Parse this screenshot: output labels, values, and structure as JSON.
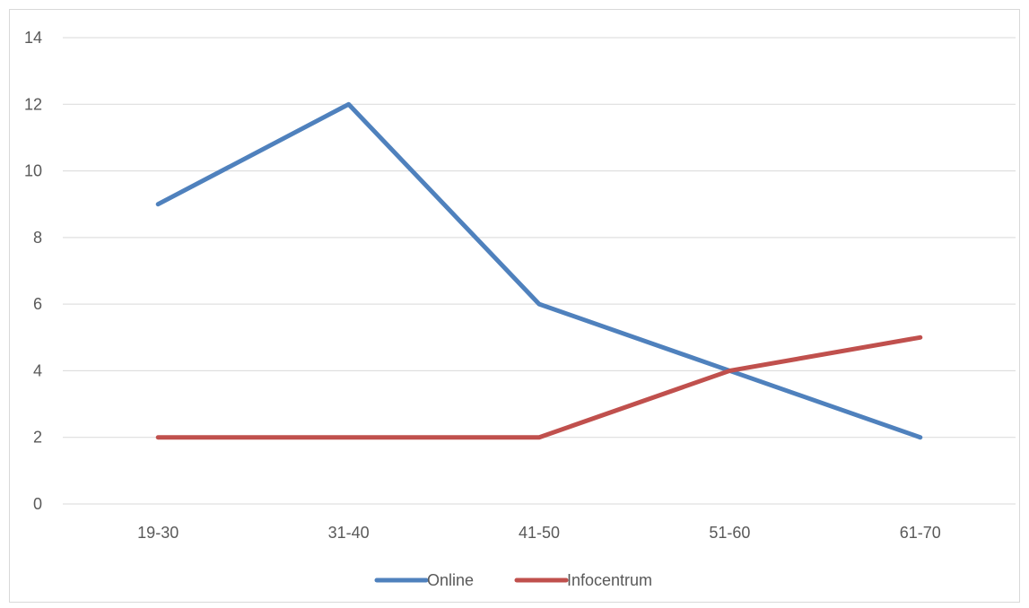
{
  "chart_data": {
    "type": "line",
    "categories": [
      "19-30",
      "31-40",
      "41-50",
      "51-60",
      "61-70"
    ],
    "series": [
      {
        "name": "Online",
        "values": [
          9,
          12,
          6,
          4,
          2
        ],
        "color": "#4f81bd"
      },
      {
        "name": "Infocentrum",
        "values": [
          2,
          2,
          2,
          4,
          5
        ],
        "color": "#c0504d"
      }
    ],
    "yticks": [
      "0",
      "2",
      "4",
      "6",
      "8",
      "10",
      "12",
      "14"
    ],
    "ylim": [
      0,
      14
    ],
    "grid": true,
    "legend_position": "bottom",
    "gridline_color": "#d9d9d9",
    "axis_text_color": "#595959"
  }
}
